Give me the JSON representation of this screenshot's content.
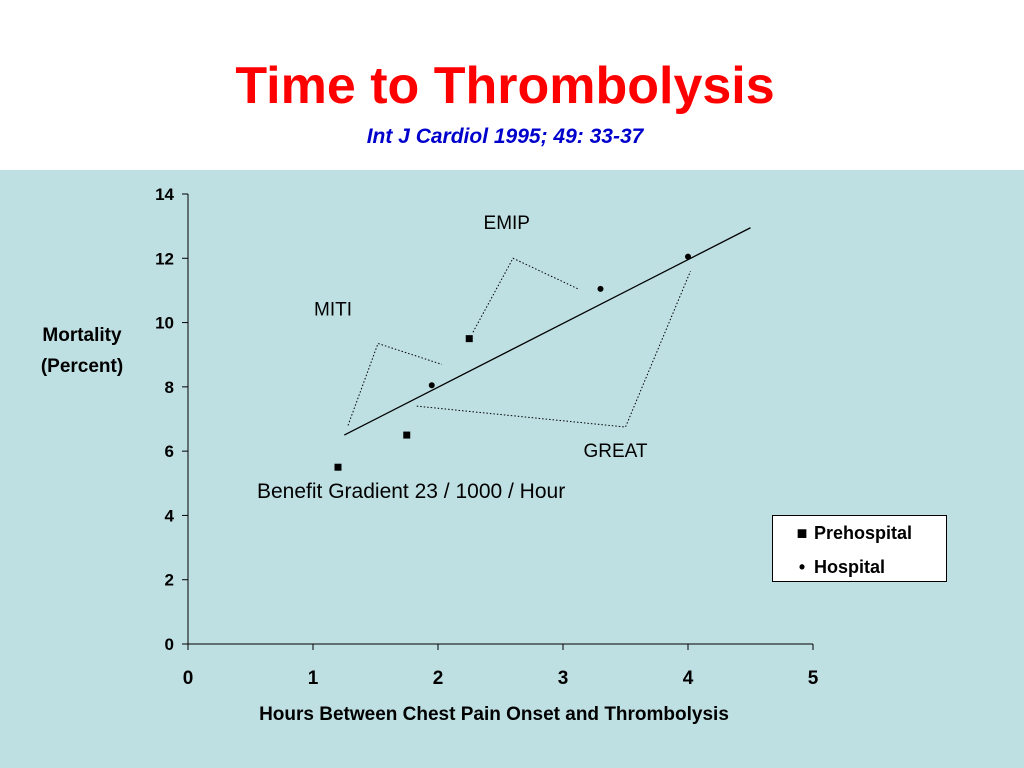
{
  "header": {
    "title": "Time to Thrombolysis",
    "subtitle": "Int J Cardiol 1995; 49: 33-37"
  },
  "colors": {
    "title": "#ff0000",
    "subtitle": "#0000cc",
    "panel_background": "#bfe0e3",
    "axis": "#000000"
  },
  "chart_data": {
    "type": "scatter",
    "xlabel": "Hours Between Chest Pain Onset and Thrombolysis",
    "ylabel": [
      "Mortality",
      "(Percent)"
    ],
    "xlim": [
      0,
      5
    ],
    "ylim": [
      0,
      14
    ],
    "x_ticks": [
      "0",
      "1",
      "2",
      "3",
      "4",
      "5"
    ],
    "y_ticks": [
      "0",
      "2",
      "4",
      "6",
      "8",
      "10",
      "12",
      "14"
    ],
    "grid": false,
    "legend_position": "right",
    "series": [
      {
        "name": "Prehospital",
        "marker": "square",
        "points": [
          [
            1.2,
            5.5
          ],
          [
            1.75,
            6.5
          ],
          [
            2.25,
            9.5
          ]
        ]
      },
      {
        "name": "Hospital",
        "marker": "circle",
        "points": [
          [
            1.95,
            8.05
          ],
          [
            3.3,
            11.05
          ],
          [
            4.0,
            12.05
          ]
        ]
      }
    ],
    "trendline": {
      "x": [
        1.25,
        4.5
      ],
      "y": [
        6.5,
        12.95
      ]
    },
    "trial_labels": [
      "MITI",
      "EMIP",
      "GREAT"
    ],
    "annotation": "Benefit Gradient  23 / 1000 / Hour"
  },
  "legend": {
    "items": [
      {
        "marker": "■",
        "label": "Prehospital"
      },
      {
        "marker": "•",
        "label": "Hospital"
      }
    ]
  }
}
